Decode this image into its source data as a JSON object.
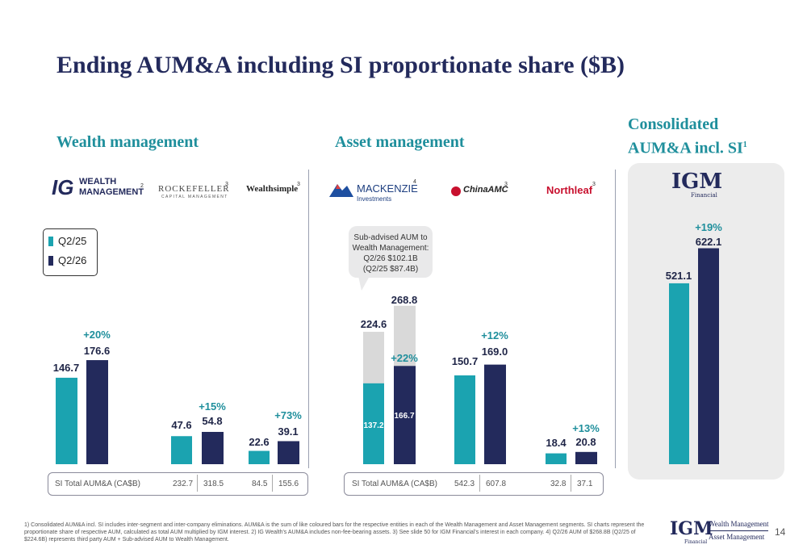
{
  "title": "Ending AUM&A including SI proportionate share ($B)",
  "sections": {
    "wealth": "Wealth management",
    "asset": "Asset management",
    "consolidated_line1": "Consolidated",
    "consolidated_line2": "AUM&A incl. SI",
    "consolidated_sup": "1"
  },
  "logos": {
    "ig_mark": "IG",
    "ig_line1": "WEALTH",
    "ig_line2": "MANAGEMENT",
    "ig_sup": "2",
    "rockefeller_line1": "ROCKEFELLER",
    "rockefeller_line2": "CAPITAL MANAGEMENT",
    "rockefeller_sup": "3",
    "wealthsimple": "Wealthsimple",
    "wealthsimple_sup": "3",
    "mackenzie_line1": "MACKENZIE",
    "mackenzie_line2": "Investments",
    "mackenzie_sup": "4",
    "chinaamc": "ChinaAMC",
    "chinaamc_sup": "3",
    "northleaf": "Northleaf",
    "northleaf_sup": "3",
    "igm_mark": "IGM",
    "igm_sub": "Financial"
  },
  "legend": {
    "q2_25": "Q2/25",
    "q2_26": "Q2/26"
  },
  "colors": {
    "q2_25": "#1ba3b0",
    "q2_26": "#232a5c",
    "subadvised": "#d9d9d9",
    "growth": "#1f8f9c"
  },
  "callout": {
    "line1": "Sub-advised AUM to",
    "line2": "Wealth Management:",
    "line3": "Q2/26 $102.1B",
    "line4": "(Q2/25 $87.4B)"
  },
  "totals": {
    "label_left": "SI Total AUM&A (CA$B)",
    "label_right": "SI Total AUM&A (CA$B)",
    "rockefeller_q2_25": "232.7",
    "rockefeller_q2_26": "318.5",
    "wealthsimple_q2_25": "84.5",
    "wealthsimple_q2_26": "155.6",
    "chinaamc_q2_25": "542.3",
    "chinaamc_q2_26": "607.8",
    "northleaf_q2_25": "32.8",
    "northleaf_q2_26": "37.1"
  },
  "chart_data": {
    "type": "bar",
    "series": [
      {
        "name": "Q2/25",
        "color": "#1ba3b0"
      },
      {
        "name": "Q2/26",
        "color": "#232a5c"
      }
    ],
    "groups": [
      {
        "entity": "IG Wealth Management",
        "q2_25": 146.7,
        "q2_26": 176.6,
        "growth": "+20%"
      },
      {
        "entity": "Rockefeller",
        "q2_25": 47.6,
        "q2_26": 54.8,
        "growth": "+15%"
      },
      {
        "entity": "Wealthsimple",
        "q2_25": 22.6,
        "q2_26": 39.1,
        "growth": "+73%"
      },
      {
        "entity": "Mackenzie",
        "q2_25": 224.6,
        "q2_26": 268.8,
        "q2_25_inner": 137.2,
        "q2_26_inner": 166.7,
        "growth": "+22%"
      },
      {
        "entity": "ChinaAMC",
        "q2_25": 150.7,
        "q2_26": 169.0,
        "growth": "+12%"
      },
      {
        "entity": "Northleaf",
        "q2_25": 18.4,
        "q2_26": 20.8,
        "growth": "+13%"
      },
      {
        "entity": "Consolidated AUM&A incl. SI",
        "q2_25": 521.1,
        "q2_26": 622.1,
        "growth": "+19%"
      }
    ],
    "labels": {
      "ig_q2_25": "146.7",
      "ig_q2_26": "176.6",
      "rock_q2_25": "47.6",
      "rock_q2_26": "54.8",
      "ws_q2_25": "22.6",
      "ws_q2_26": "39.1",
      "mac_q2_25": "224.6",
      "mac_q2_26": "268.8",
      "mac_q2_25_inner": "137.2",
      "mac_q2_26_inner": "166.7",
      "camc_q2_25": "150.7",
      "camc_q2_26": "169.0",
      "nl_q2_25": "18.4",
      "nl_q2_26": "20.8",
      "cons_q2_25": "521.1",
      "cons_q2_26": "622.1"
    }
  },
  "footer": {
    "footnote": "1) Consolidated AUM&A incl. SI includes inter-segment and inter-company eliminations. AUM&A is the sum of like coloured bars for the respective entities in each of the Wealth Management and Asset Management segments. SI charts represent the proportionate share of respective AUM, calculated as total AUM multiplied by IGM interest. 2) IG Wealth's AUM&A includes non-fee-bearing assets. 3) See slide 50 for IGM Financial's interest in each company. 4) Q2/26 AUM of $268.8B (Q2/25 of $224.6B) represents third party AUM + Sub-advised AUM to Wealth Management.",
    "brand_mark": "IGM",
    "brand_sub": "Financial",
    "brand_line1": "Wealth Management",
    "brand_line2": "Asset Management",
    "page_number": "14"
  }
}
